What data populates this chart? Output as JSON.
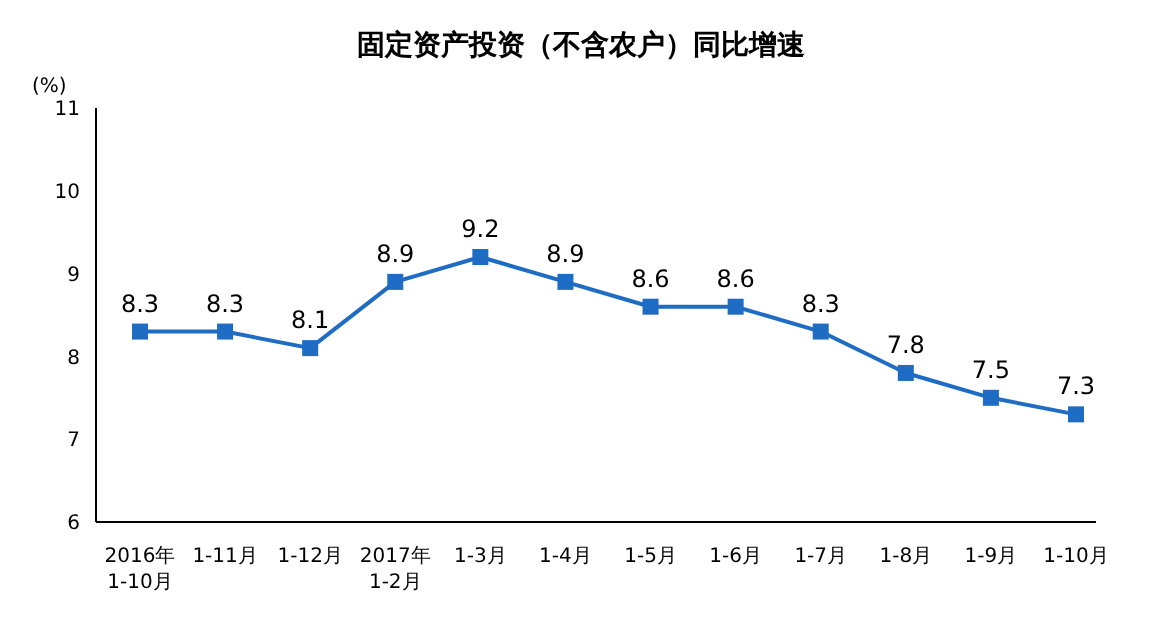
{
  "chart_data": {
    "type": "line",
    "title": "固定资产投资（不含农户）同比增速",
    "ylabel": "(%)",
    "categories": [
      "2016年\n1-10月",
      "1-11月",
      "1-12月",
      "2017年\n1-2月",
      "1-3月",
      "1-4月",
      "1-5月",
      "1-6月",
      "1-7月",
      "1-8月",
      "1-9月",
      "1-10月"
    ],
    "series": [
      {
        "color": "#1f6cc4",
        "values": [
          8.3,
          8.3,
          8.1,
          8.9,
          9.2,
          8.9,
          8.6,
          8.6,
          8.3,
          7.8,
          7.5,
          7.3
        ]
      }
    ],
    "ylim": [
      6,
      11
    ],
    "yticks": [
      6,
      7,
      8,
      9,
      10,
      11
    ],
    "grid": false,
    "legend": false,
    "marker": "square",
    "line_style": "solid",
    "data_labels": true
  }
}
